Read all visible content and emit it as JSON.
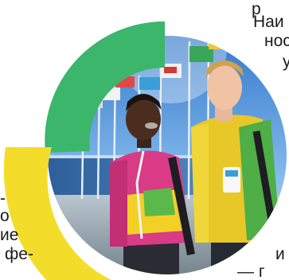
{
  "article": {
    "right_column": [
      "р",
      "Наи",
      "нос",
      "у"
    ],
    "left_column": [
      "-",
      "о",
      "ие",
      "фе-"
    ],
    "right_bottom": [
      "и",
      "— г"
    ]
  },
  "photo": {
    "flag_colors": [
      "#e8c23a",
      "#3a7fd1",
      "#d23a3a",
      "#3aa65a",
      "#f0f0f0"
    ]
  },
  "ring": {
    "colors": {
      "green": "#3bb66a",
      "yellow": "#f3dd2a"
    }
  }
}
